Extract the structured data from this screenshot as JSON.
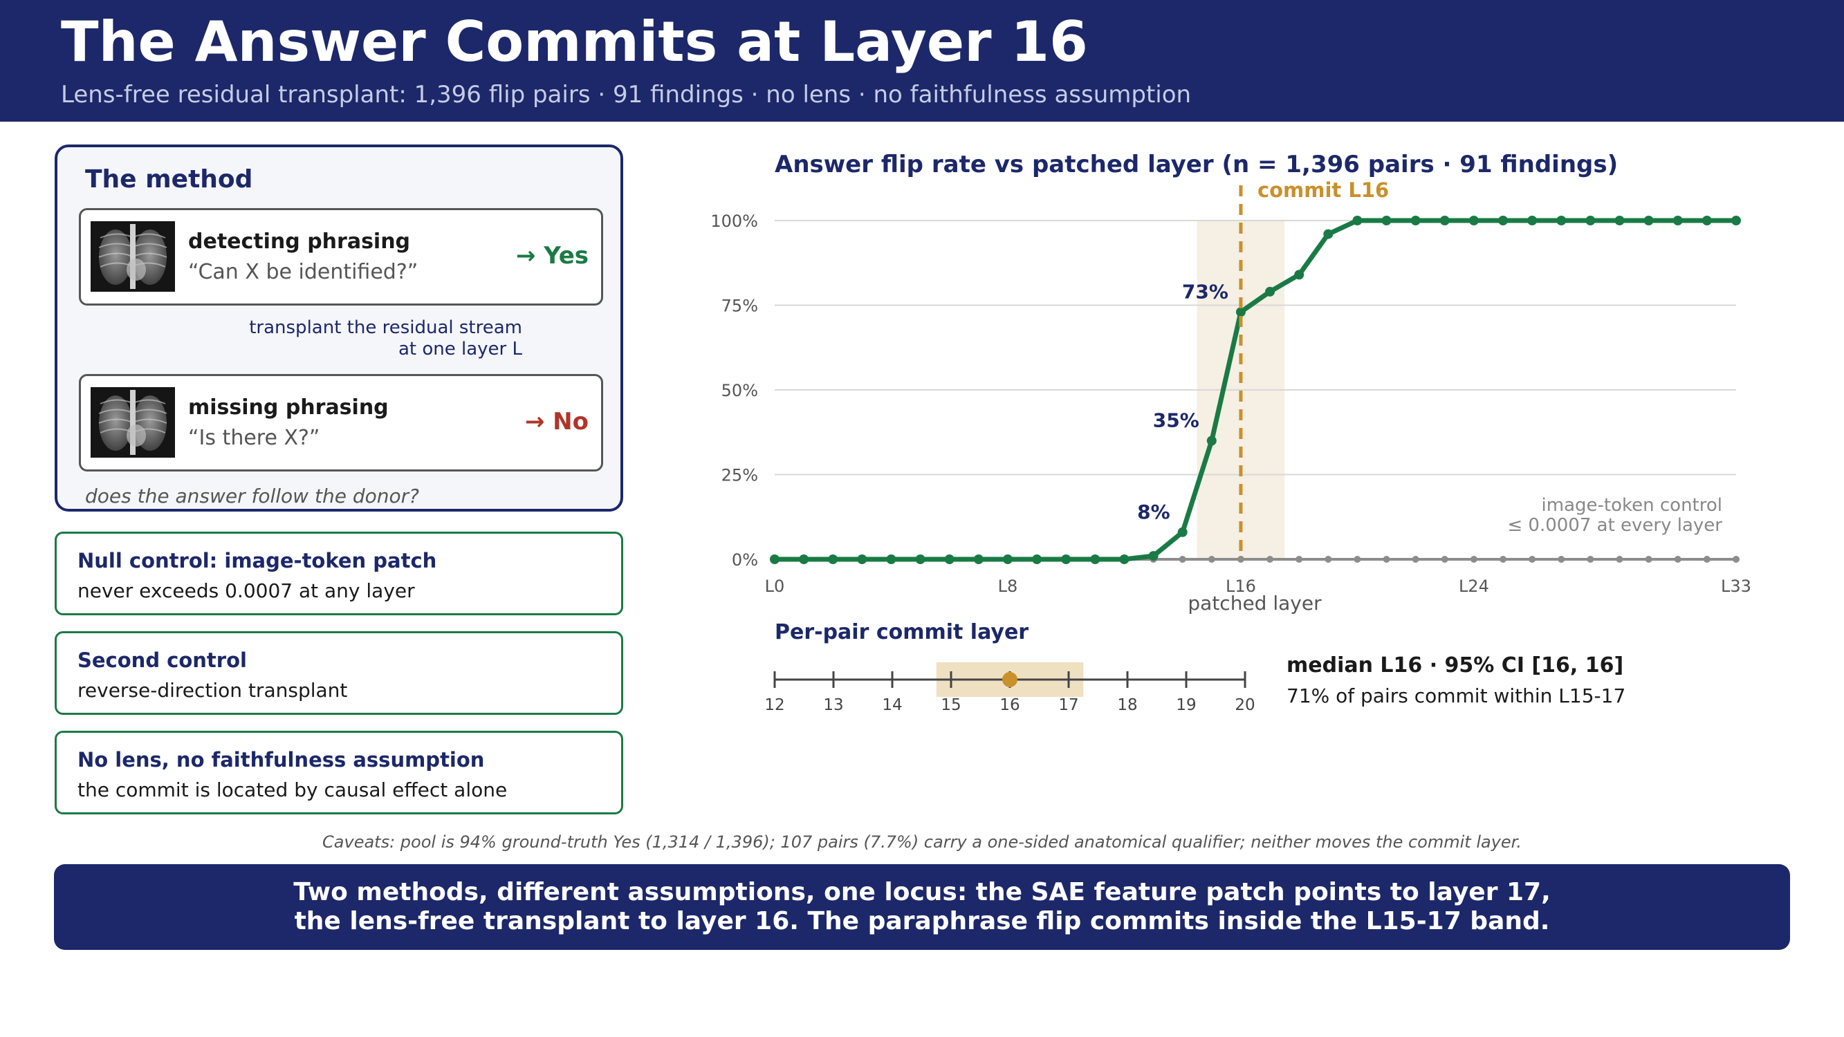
{
  "header": {
    "title": "The Answer Commits at Layer 16",
    "subtitle": "Lens-free residual transplant: 1,396 flip pairs · 91 findings · no lens · no faithfulness assumption"
  },
  "method": {
    "title": "The method",
    "detecting": {
      "name": "detecting phrasing",
      "question": "“Can X be identified?”",
      "answer": "→ Yes"
    },
    "transplant_line1": "transplant the residual stream",
    "transplant_line2": "at one layer L",
    "missing": {
      "name": "missing phrasing",
      "question": "“Is there X?”",
      "answer": "→ No"
    },
    "follow": "does the answer follow the donor?"
  },
  "controls": [
    {
      "heading": "Null control: image-token patch",
      "text": "never exceeds 0.0007 at any layer"
    },
    {
      "heading": "Second control",
      "text": "reverse-direction transplant"
    },
    {
      "heading": "No lens, no faithfulness assumption",
      "text": "the commit is located by causal effect alone"
    }
  ],
  "chart_data": [
    {
      "type": "line",
      "title": "Answer flip rate vs patched layer  (n = 1,396 pairs · 91 findings)",
      "xlabel": "patched layer",
      "ylabel": "",
      "x": [
        0,
        1,
        2,
        3,
        4,
        5,
        6,
        7,
        8,
        9,
        10,
        11,
        12,
        13,
        14,
        15,
        16,
        17,
        18,
        19,
        20,
        21,
        22,
        23,
        24,
        25,
        26,
        27,
        28,
        29,
        30,
        31,
        32,
        33
      ],
      "xticks": [
        "L0",
        "L8",
        "L16",
        "L24",
        "L33"
      ],
      "xtick_values": [
        0,
        8,
        16,
        24,
        33
      ],
      "yticks": [
        "0%",
        "25%",
        "50%",
        "75%",
        "100%"
      ],
      "ylim": [
        0,
        1
      ],
      "grid": true,
      "series": [
        {
          "role": "main",
          "color": "#1a7a45",
          "values": [
            0,
            0,
            0,
            0,
            0,
            0,
            0,
            0,
            0,
            0,
            0,
            0,
            0,
            0.01,
            0.08,
            0.35,
            0.73,
            0.79,
            0.84,
            0.96,
            1,
            1,
            1,
            1,
            1,
            1,
            1,
            1,
            1,
            1,
            1,
            1,
            1,
            1
          ]
        },
        {
          "role": "control",
          "color": "#8c8c8c",
          "values": [
            0,
            0,
            0,
            0,
            0,
            0,
            0,
            0,
            0,
            0,
            0,
            0,
            0,
            0,
            0,
            0,
            0,
            0,
            0,
            0,
            0,
            0,
            0,
            0,
            0,
            0,
            0,
            0,
            0,
            0,
            0,
            0,
            0,
            0
          ]
        }
      ],
      "data_labels": [
        {
          "x": 14,
          "text": "8%"
        },
        {
          "x": 15,
          "text": "35%"
        },
        {
          "x": 16,
          "text": "73%"
        }
      ],
      "band": [
        14.5,
        17.5
      ],
      "commit_line": {
        "x": 16,
        "label": "commit L16",
        "color": "#c9902b"
      },
      "annotation_line1": "image-token control",
      "annotation_line2": "≤ 0.0007 at every layer"
    },
    {
      "type": "scatter",
      "title": "Per-pair commit layer",
      "ticks": [
        "12",
        "13",
        "14",
        "15",
        "16",
        "17",
        "18",
        "19",
        "20"
      ],
      "tick_values": [
        12,
        13,
        14,
        15,
        16,
        17,
        18,
        19,
        20
      ],
      "band": [
        14.75,
        17.25
      ],
      "median": 16,
      "ci": [
        16,
        16
      ],
      "stat_line1": "median L16 · 95% CI [16, 16]",
      "stat_line2": "71% of pairs commit within L15-17"
    }
  ],
  "caveats": "Caveats: pool is 94% ground-truth Yes (1,314 / 1,396); 107 pairs (7.7%) carry a one-sided anatomical qualifier; neither moves the commit layer.",
  "banner": {
    "line1": "Two methods, different assumptions, one locus: the SAE feature patch points to layer 17,",
    "line2": "the lens-free transplant to layer 16. The paraphrase flip commits inside the L15-17 band."
  },
  "colors": {
    "navy": "#1c2869",
    "green": "#1a7a45",
    "red": "#b03528",
    "gold": "#c9902b",
    "band": "#f5efe4",
    "grid": "#d8d8d8"
  }
}
